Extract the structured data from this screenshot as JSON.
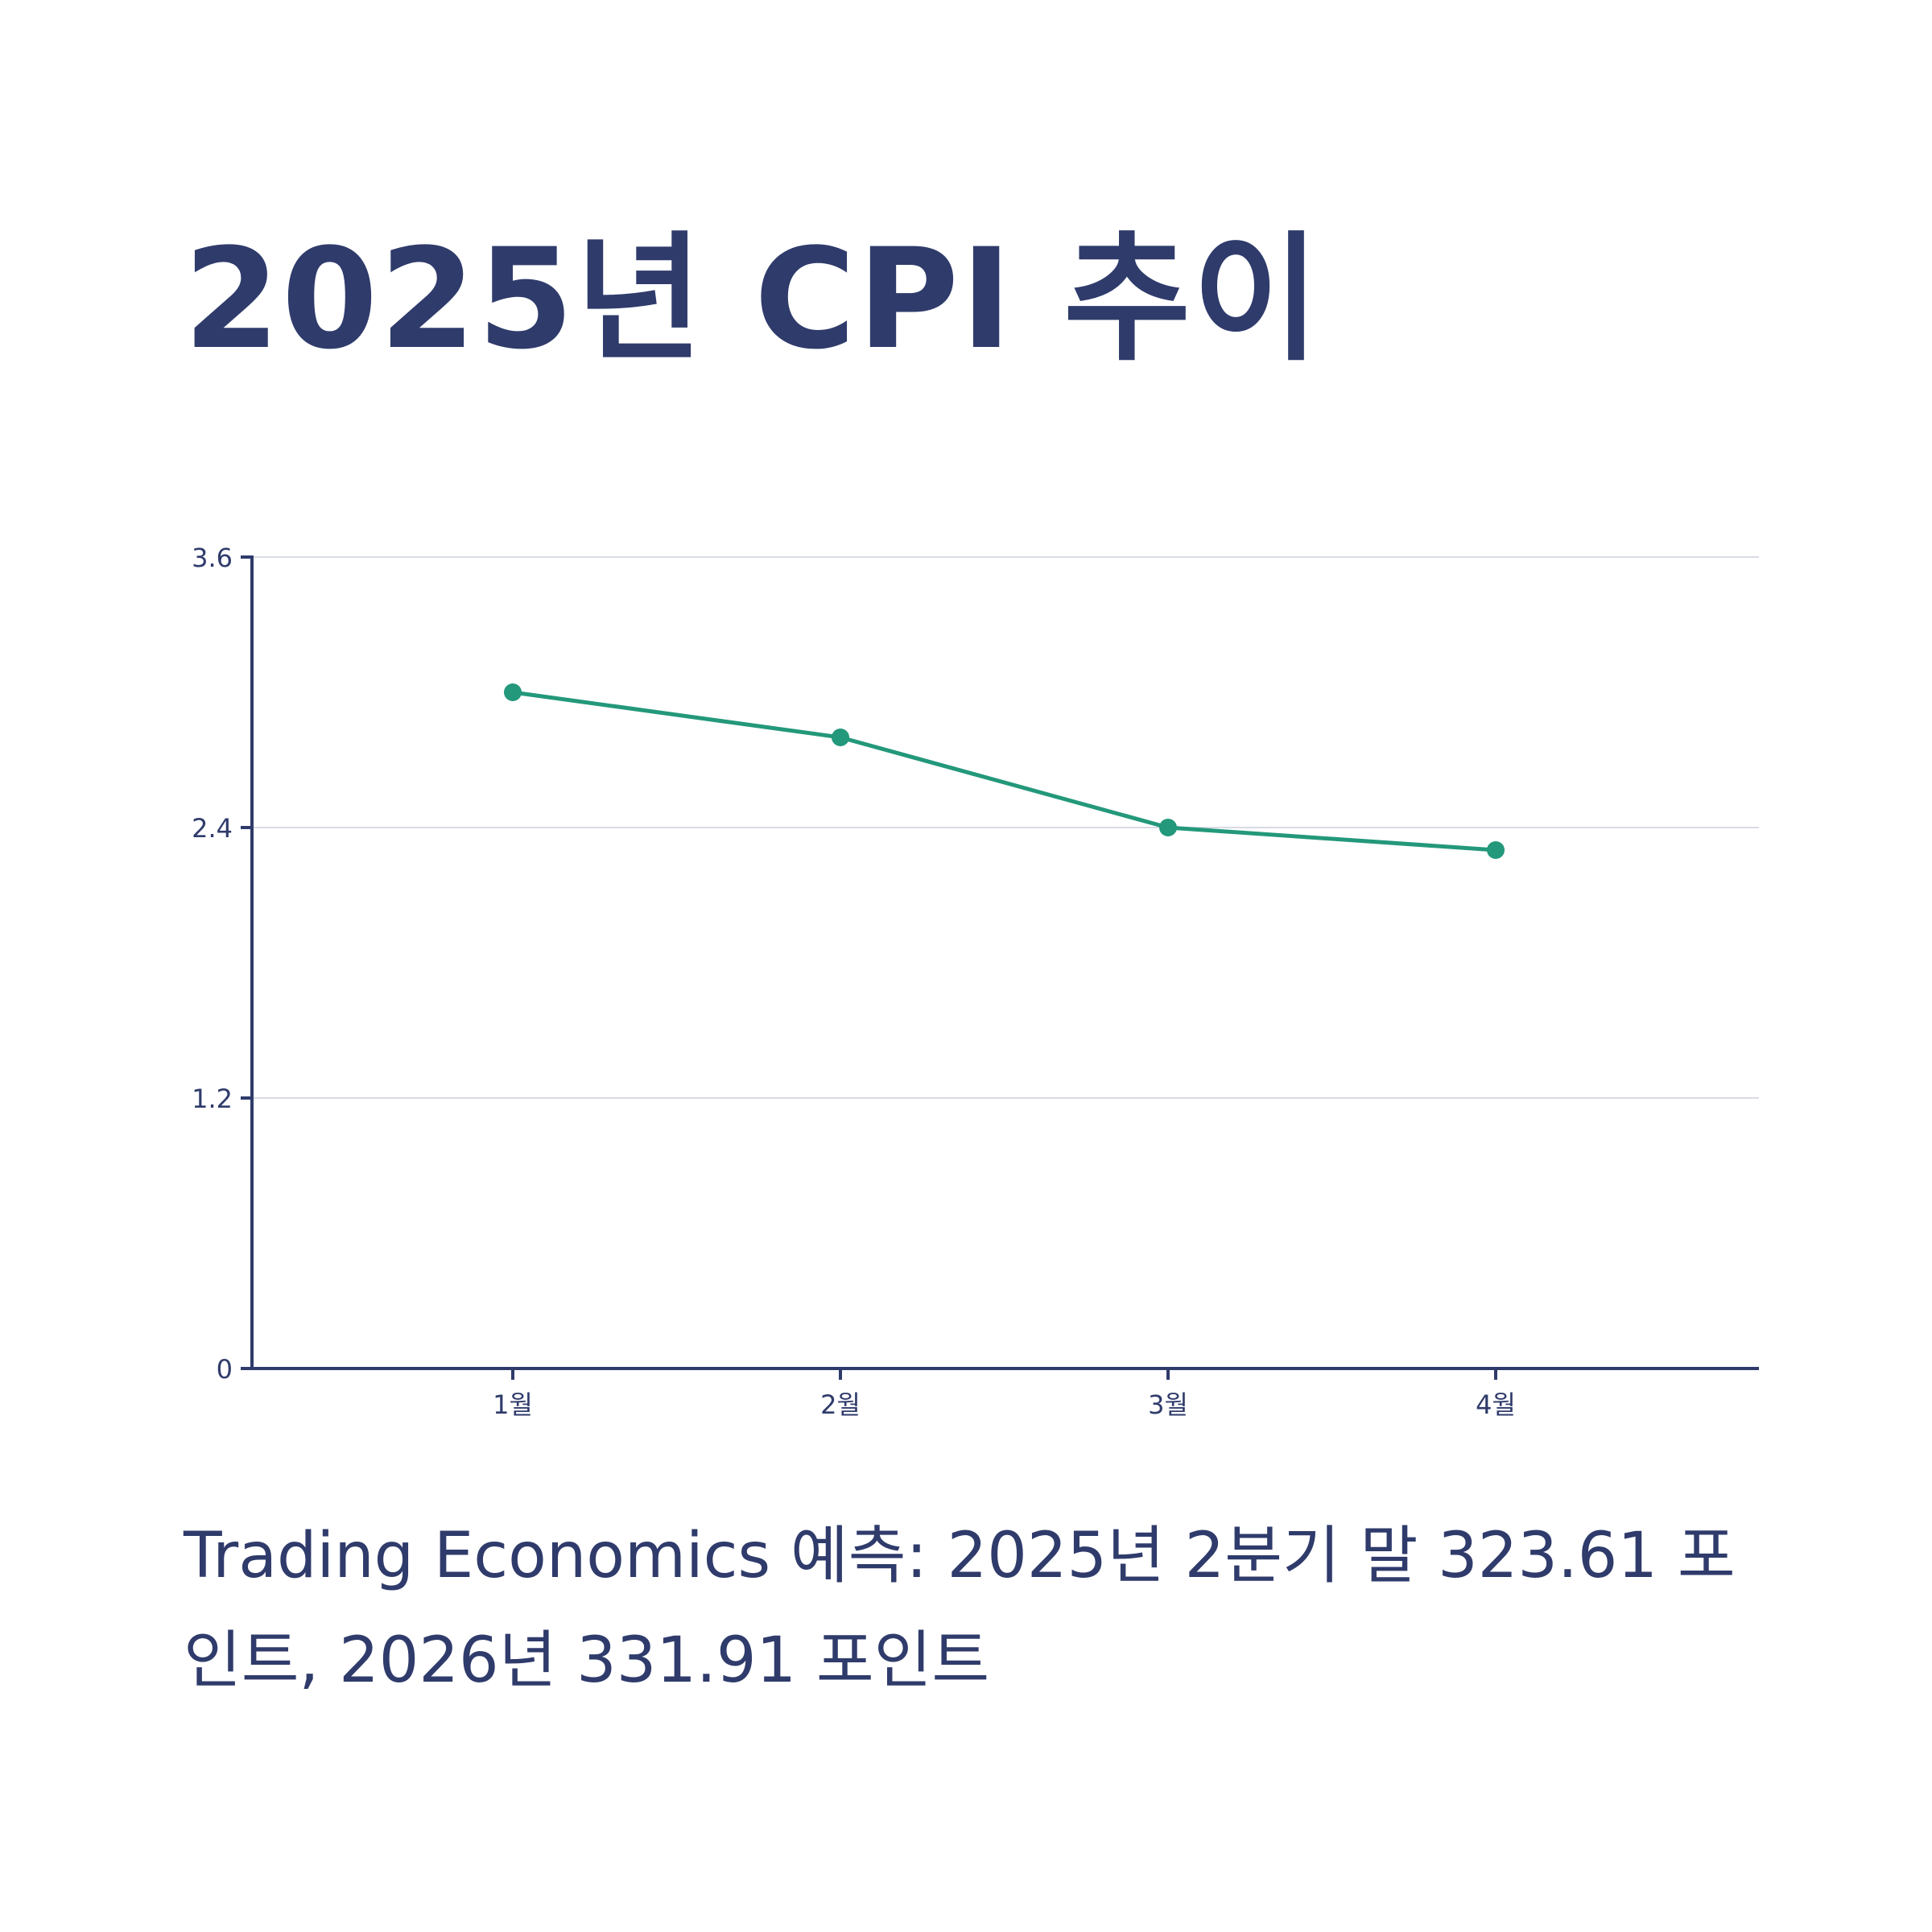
{
  "title": "2025년 CPI 추이",
  "caption": "Trading Economics 예측: 2025년 2분기 말 323.61 포인트, 2026년 331.91 포인트",
  "colors": {
    "text": "#2f3b6b",
    "axis": "#2f3b6b",
    "grid": "#d9dbe6",
    "series": "#23987a"
  },
  "chart_data": {
    "type": "line",
    "categories": [
      "1월",
      "2월",
      "3월",
      "4월"
    ],
    "series": [
      {
        "values": [
          3.0,
          2.8,
          2.4,
          2.3
        ]
      }
    ],
    "yticks": [
      "0",
      "1.2",
      "2.4",
      "3.6"
    ],
    "ylim": [
      0,
      3.6
    ],
    "grid": true
  }
}
